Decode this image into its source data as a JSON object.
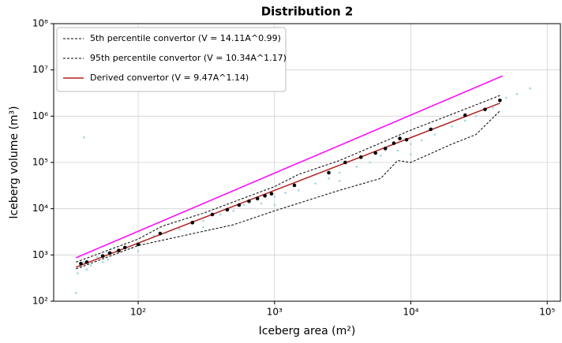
{
  "chart_data": {
    "type": "scatter",
    "title": "Distribution 2",
    "x_label": "Iceberg area (m²)",
    "y_label": "Iceberg volume (m³)",
    "log_x": true,
    "log_y": true,
    "grid": true,
    "legend": "upper left",
    "xlim": [
      24,
      125000
    ],
    "ylim": [
      100,
      100000000
    ],
    "xticks": [
      {
        "value": 100,
        "label": "10²"
      },
      {
        "value": 1000,
        "label": "10³"
      },
      {
        "value": 10000,
        "label": "10⁴"
      },
      {
        "value": 100000,
        "label": "10⁵"
      }
    ],
    "yticks": [
      {
        "value": 100,
        "label": "10²"
      },
      {
        "value": 1000,
        "label": "10³"
      },
      {
        "value": 10000,
        "label": "10⁴"
      },
      {
        "value": 100000,
        "label": "10⁵"
      },
      {
        "value": 1000000,
        "label": "10⁶"
      },
      {
        "value": 10000000,
        "label": "10⁷"
      },
      {
        "value": 100000000,
        "label": "10⁸"
      }
    ],
    "series": [
      {
        "type": "scatter",
        "color": "#add8e6",
        "x": [
          36,
          38,
          40,
          42,
          45,
          50,
          55,
          60,
          70,
          80,
          90,
          110,
          130,
          160,
          200,
          250,
          300,
          400,
          500,
          600,
          800,
          1000,
          1200,
          1500,
          2000,
          2500,
          3000,
          4000,
          5000,
          6000,
          8000,
          10000,
          12000,
          15000,
          20000,
          25000,
          30000,
          40000,
          50000,
          60000,
          75000,
          40,
          60,
          100,
          300,
          1000,
          3000,
          10000,
          35
        ],
        "values": [
          400,
          550,
          700,
          480,
          600,
          900,
          700,
          1100,
          1200,
          1500,
          1400,
          2000,
          2600,
          3000,
          3600,
          5000,
          5500,
          7500,
          9000,
          12000,
          13000,
          18000,
          22000,
          25000,
          35000,
          45000,
          60000,
          80000,
          100000,
          140000,
          180000,
          250000,
          300000,
          400000,
          600000,
          800000,
          1000000,
          1500000,
          2500000,
          3000000,
          4000000,
          350000,
          800,
          1200,
          4000,
          12000,
          40000,
          150000,
          150
        ]
      },
      {
        "type": "line",
        "color": "#ff00ff",
        "dash": false,
        "x": [
          35,
          47000
        ],
        "values": [
          870,
          7400000
        ]
      },
      {
        "type": "line",
        "name": "5th percentile convertor (V = 14.11A^0.99)",
        "color": "#000000",
        "dash": true,
        "x": [
          35,
          100,
          200,
          500,
          1000,
          3000,
          6000,
          8000,
          10000,
          20000,
          30000,
          45000
        ],
        "values": [
          500,
          1600,
          2500,
          4500,
          9000,
          25000,
          45000,
          110000,
          100000,
          250000,
          400000,
          1300000
        ]
      },
      {
        "type": "line",
        "name": "95th percentile convertor (V = 10.34A^1.17)",
        "color": "#000000",
        "dash": true,
        "x": [
          35,
          100,
          150,
          300,
          1000,
          1500,
          3000,
          10000,
          20000,
          45000
        ],
        "values": [
          700,
          2200,
          4200,
          8000,
          30000,
          55000,
          110000,
          500000,
          1100000,
          2800000
        ]
      },
      {
        "type": "line",
        "name": "Derived convertor (V = 9.47A^1.14)",
        "color": "#b22222",
        "dash": false,
        "x": [
          35,
          100,
          1000,
          10000,
          45000
        ],
        "values": [
          545,
          1804,
          24900,
          343800,
          1910000
        ]
      },
      {
        "type": "scatter",
        "color": "#000000",
        "x": [
          38,
          42,
          55,
          62,
          72,
          80,
          100,
          145,
          250,
          350,
          450,
          550,
          650,
          750,
          850,
          950,
          1400,
          2500,
          3300,
          4300,
          5500,
          6500,
          7500,
          8300,
          9300,
          14000,
          25000,
          35000,
          45000
        ],
        "values": [
          650,
          700,
          950,
          1100,
          1250,
          1450,
          1700,
          2900,
          5000,
          7500,
          9500,
          12000,
          14500,
          16500,
          19000,
          21000,
          32000,
          60000,
          100000,
          130000,
          160000,
          200000,
          260000,
          330000,
          310000,
          520000,
          1050000,
          1400000,
          2200000
        ]
      }
    ]
  }
}
